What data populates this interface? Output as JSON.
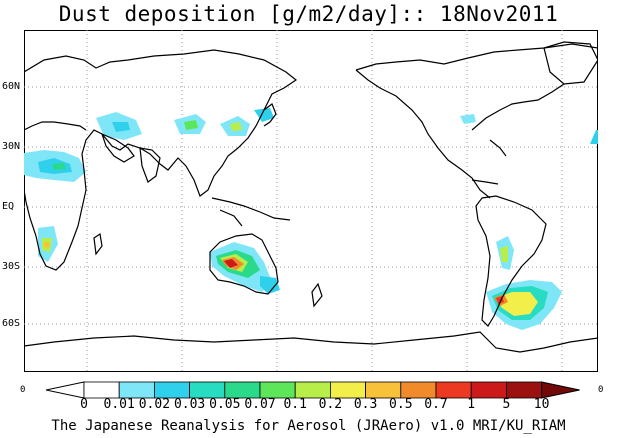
{
  "title": "Dust deposition [g/m2/day]:: 18Nov2011",
  "footer": "The Japanese Reanalysis for Aerosol (JRAero) v1.0 MRI/KU_RIAM",
  "variable": "Dust deposition",
  "units": "g/m2/day",
  "date": "18Nov2011",
  "lat_labels": [
    "60N",
    "30N",
    "EQ",
    "30S",
    "60S"
  ],
  "side_labels": {
    "left": "0",
    "right": "0"
  },
  "colorbar": {
    "ticks": [
      "0",
      "0.01",
      "0.02",
      "0.03",
      "0.05",
      "0.07",
      "0.1",
      "0.2",
      "0.3",
      "0.5",
      "0.7",
      "1",
      "5",
      "10"
    ],
    "colors": [
      "#ffffff",
      "#ffffff",
      "#7fe6f8",
      "#2fd0ec",
      "#27dcc0",
      "#2bd98a",
      "#5ee65a",
      "#b8ee4a",
      "#f2ee4a",
      "#f7c23a",
      "#f08a2a",
      "#ec3a22",
      "#cc1a1a",
      "#9c1010",
      "#720808"
    ]
  },
  "map": {
    "projection": "equirectangular, centred 180",
    "ocean_color": "#ffffff",
    "coast_color": "#000000",
    "grid_style": "dotted grey"
  }
}
